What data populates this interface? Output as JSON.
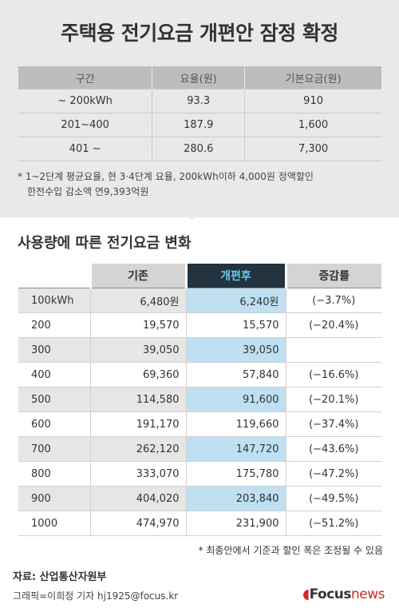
{
  "title": "주택용 전기요금 개편안 잠정 확정",
  "rate_table": {
    "headers": [
      "구간",
      "요율(원)",
      "기본요금(원)"
    ],
    "rows": [
      [
        "~ 200kWh",
        "93.3",
        "910"
      ],
      [
        "201~400",
        "187.9",
        "1,600"
      ],
      [
        "401 ~",
        "280.6",
        "7,300"
      ]
    ]
  },
  "note1": {
    "line1": "* 1~2단계 평균요율, 현 3·4단계 요율, 200kWh이하 4,000원 정액할인",
    "line2": "한전수입 감소액 연9,393억원"
  },
  "subtitle": "사용량에 따른 전기요금 변화",
  "change_table": {
    "headers": [
      "기존",
      "개편후",
      "증감률"
    ],
    "rows": [
      {
        "usage": "100kWh",
        "before": "6,480원",
        "after": "6,240원",
        "change": "(−3.7%)"
      },
      {
        "usage": "200",
        "before": "19,570",
        "after": "15,570",
        "change": "(−20.4%)"
      },
      {
        "usage": "300",
        "before": "39,050",
        "after": "39,050",
        "change": ""
      },
      {
        "usage": "400",
        "before": "69,360",
        "after": "57,840",
        "change": "(−16.6%)"
      },
      {
        "usage": "500",
        "before": "114,580",
        "after": "91,600",
        "change": "(−20.1%)"
      },
      {
        "usage": "600",
        "before": "191,170",
        "after": "119,660",
        "change": "(−37.4%)"
      },
      {
        "usage": "700",
        "before": "262,120",
        "after": "147,720",
        "change": "(−43.6%)"
      },
      {
        "usage": "800",
        "before": "333,070",
        "after": "175,780",
        "change": "(−47.2%)"
      },
      {
        "usage": "900",
        "before": "404,020",
        "after": "203,840",
        "change": "(−49.5%)"
      },
      {
        "usage": "1000",
        "before": "474,970",
        "after": "231,900",
        "change": "(−51.2%)"
      }
    ]
  },
  "note2": "* 최종안에서 기준과 할인 폭은 조정될 수 있음",
  "source": "자료: 산업통산자원부",
  "credit": "그래픽=이희정 기자 hj1925@focus.kr",
  "logo": {
    "brand": "Focus",
    "suffix": "news"
  },
  "colors": {
    "header_dark": "#22323f",
    "after_accent": "#6cc6ea",
    "after_fill": "#bfe0f2",
    "logo_red": "#d7262b"
  }
}
